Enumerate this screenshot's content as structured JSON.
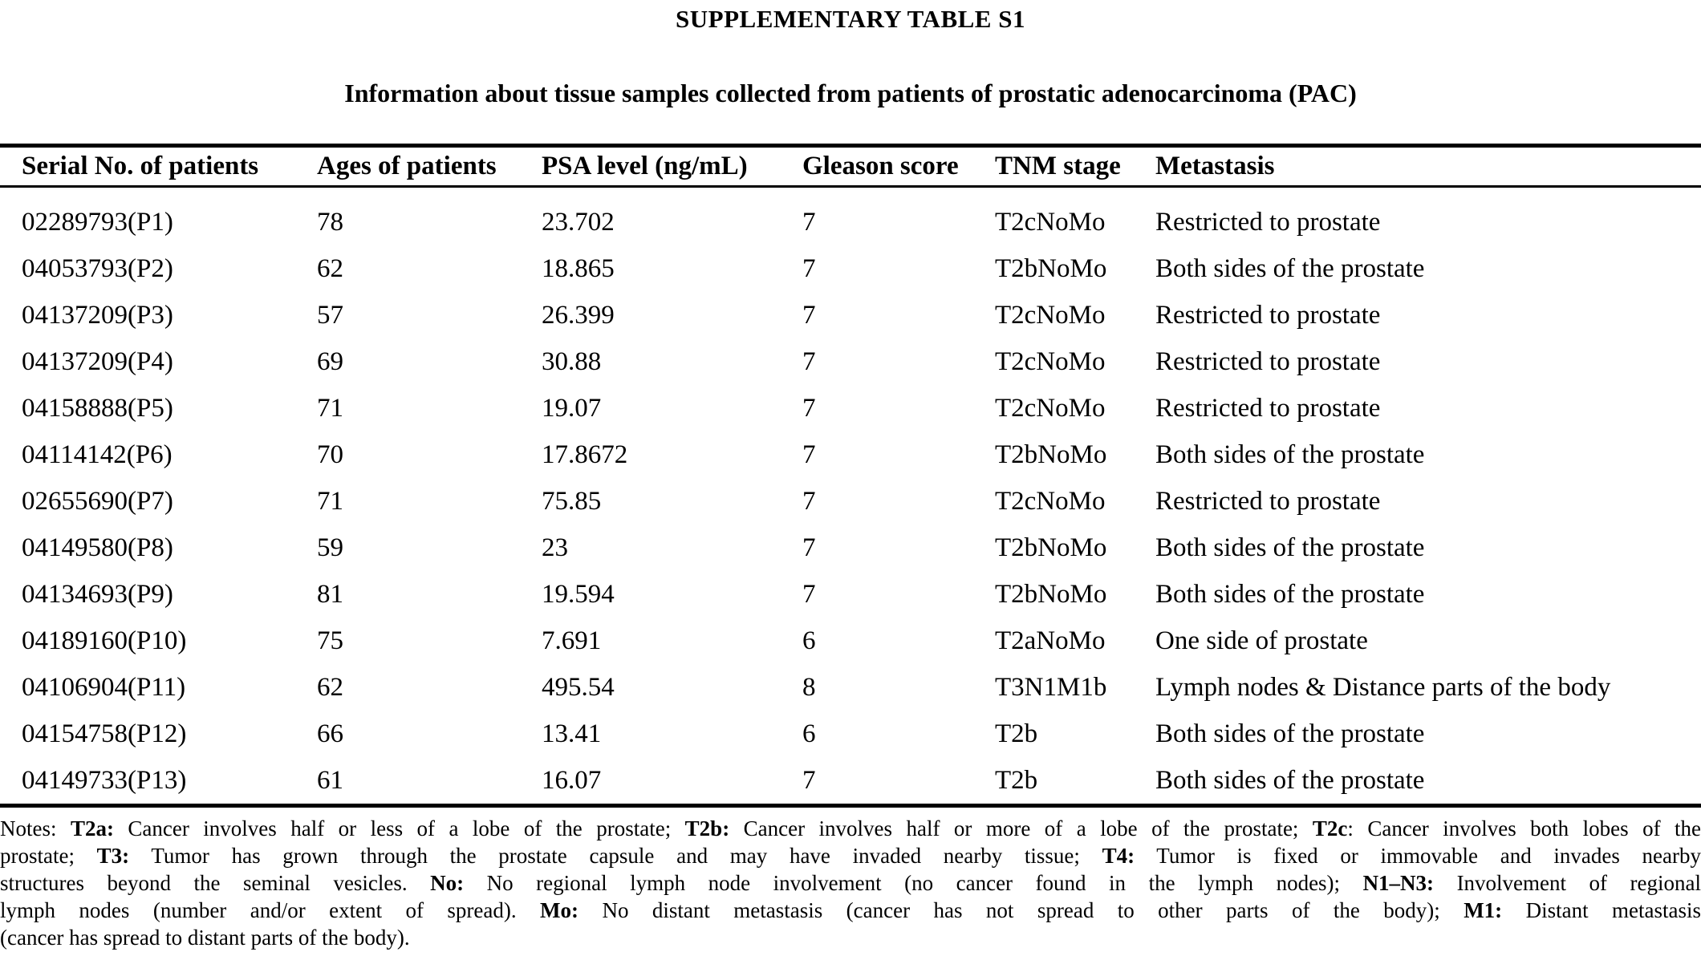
{
  "colors": {
    "text": "#000000",
    "background": "#ffffff",
    "rule": "#000000"
  },
  "page": {
    "title": "SUPPLEMENTARY TABLE S1",
    "subtitle": "Information about tissue samples collected from patients of prostatic adenocarcinoma (PAC)"
  },
  "table": {
    "headers": [
      "Serial No. of patients",
      "Ages of patients",
      "PSA level (ng/mL)",
      "Gleason score",
      "TNM stage",
      "Metastasis"
    ],
    "rows": [
      {
        "serial": "02289793(P1)",
        "age": "78",
        "psa": "23.702",
        "gleason": "7",
        "tnm": "T2cNoMo",
        "metastasis": "Restricted to prostate"
      },
      {
        "serial": "04053793(P2)",
        "age": "62",
        "psa": "18.865",
        "gleason": "7",
        "tnm": "T2bNoMo",
        "metastasis": "Both sides of the prostate"
      },
      {
        "serial": "04137209(P3)",
        "age": "57",
        "psa": "26.399",
        "gleason": "7",
        "tnm": "T2cNoMo",
        "metastasis": "Restricted to prostate"
      },
      {
        "serial": "04137209(P4)",
        "age": "69",
        "psa": "30.88",
        "gleason": "7",
        "tnm": "T2cNoMo",
        "metastasis": "Restricted to prostate"
      },
      {
        "serial": "04158888(P5)",
        "age": "71",
        "psa": "19.07",
        "gleason": "7",
        "tnm": "T2cNoMo",
        "metastasis": "Restricted to prostate"
      },
      {
        "serial": "04114142(P6)",
        "age": "70",
        "psa": "17.8672",
        "gleason": "7",
        "tnm": "T2bNoMo",
        "metastasis": "Both sides of the prostate"
      },
      {
        "serial": "02655690(P7)",
        "age": "71",
        "psa": "75.85",
        "gleason": "7",
        "tnm": "T2cNoMo",
        "metastasis": "Restricted to prostate"
      },
      {
        "serial": "04149580(P8)",
        "age": "59",
        "psa": "23",
        "gleason": "7",
        "tnm": "T2bNoMo",
        "metastasis": "Both sides of the prostate"
      },
      {
        "serial": "04134693(P9)",
        "age": "81",
        "psa": "19.594",
        "gleason": "7",
        "tnm": "T2bNoMo",
        "metastasis": "Both sides of the prostate"
      },
      {
        "serial": "04189160(P10)",
        "age": "75",
        "psa": "7.691",
        "gleason": "6",
        "tnm": "T2aNoMo",
        "metastasis": "One side of prostate"
      },
      {
        "serial": "04106904(P11)",
        "age": "62",
        "psa": "495.54",
        "gleason": "8",
        "tnm": "T3N1M1b",
        "metastasis": "Lymph nodes & Distance parts of the body"
      },
      {
        "serial": "04154758(P12)",
        "age": "66",
        "psa": "13.41",
        "gleason": "6",
        "tnm": "T2b",
        "metastasis": "Both sides of the prostate"
      },
      {
        "serial": "04149733(P13)",
        "age": "61",
        "psa": "16.07",
        "gleason": "7",
        "tnm": "T2b",
        "metastasis": "Both sides of the prostate"
      }
    ]
  },
  "notes": {
    "lines": [
      [
        {
          "t": "Notes: ",
          "b": false
        },
        {
          "t": "T2a:",
          "b": true
        },
        {
          "t": " Cancer involves half or less of a lobe of the prostate; ",
          "b": false
        },
        {
          "t": "T2b:",
          "b": true
        },
        {
          "t": " Cancer involves half or more of a lobe of the prostate; ",
          "b": false
        },
        {
          "t": "T2c",
          "b": true
        },
        {
          "t": ": Cancer involves both lobes of the",
          "b": false
        }
      ],
      [
        {
          "t": "prostate; ",
          "b": false
        },
        {
          "t": "T3:",
          "b": true
        },
        {
          "t": " Tumor has grown through the prostate capsule and may have invaded nearby tissue; ",
          "b": false
        },
        {
          "t": "T4:",
          "b": true
        },
        {
          "t": " Tumor is fixed or immovable and invades nearby",
          "b": false
        }
      ],
      [
        {
          "t": "structures beyond the seminal vesicles. ",
          "b": false
        },
        {
          "t": "No:",
          "b": true
        },
        {
          "t": " No regional lymph node involvement (no cancer found in the lymph nodes); ",
          "b": false
        },
        {
          "t": "N1–N3:",
          "b": true
        },
        {
          "t": " Involvement of regional",
          "b": false
        }
      ],
      [
        {
          "t": "lymph nodes (number and/or extent of spread). ",
          "b": false
        },
        {
          "t": "Mo:",
          "b": true
        },
        {
          "t": " No distant metastasis (cancer has not spread to other parts of the body); ",
          "b": false
        },
        {
          "t": "M1:",
          "b": true
        },
        {
          "t": " Distant metastasis",
          "b": false
        }
      ],
      [
        {
          "t": "(cancer has spread to distant parts of the body).",
          "b": false
        }
      ]
    ]
  }
}
